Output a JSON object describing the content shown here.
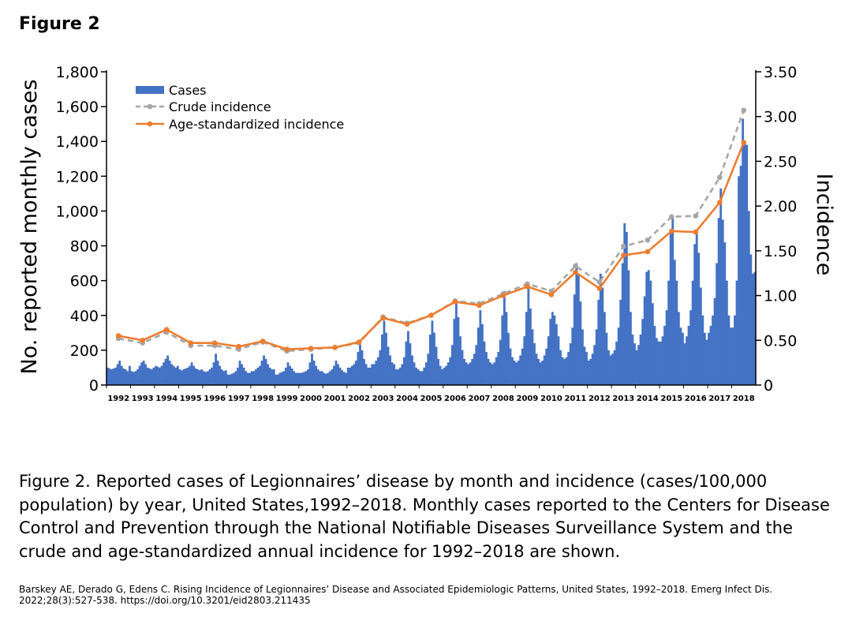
{
  "figure_label": "Figure 2",
  "caption": "Figure 2. Reported cases of Legionnaires’ disease by month and incidence (cases/100,000 population) by year, United States,1992–2018. Monthly cases reported to the Centers for Disease Control and Prevention through the National Notifiable Diseases Surveillance System and the crude and age-standardized annual incidence for 1992–2018 are shown.",
  "citation": "Barskey AE, Derado G, Edens C. Rising Incidence of Legionnaires’ Disease and Associated Epidemiologic Patterns, United States, 1992–2018. Emerg Infect Dis. 2022;28(3):527-538. https://doi.org/10.3201/eid2803.211435",
  "colors": {
    "cases": "#4472c4",
    "crude": "#a6a6a6",
    "age": "#ed7d31"
  },
  "chart_data": {
    "type": "bar+line",
    "title": "",
    "ylabel_left": "No. reported monthly cases",
    "ylabel_right": "Incidence",
    "ylim_left": [
      0,
      1800
    ],
    "ylim_right": [
      0,
      3.5
    ],
    "yticks_left": [
      0,
      200,
      400,
      600,
      800,
      1000,
      1200,
      1400,
      1600,
      1800
    ],
    "yticks_left_labels": [
      "0",
      "200",
      "400",
      "600",
      "800",
      "1,000",
      "1,200",
      "1,400",
      "1,600",
      "1,800"
    ],
    "yticks_right": [
      0,
      0.5,
      1.0,
      1.5,
      2.0,
      2.5,
      3.0,
      3.5
    ],
    "yticks_right_labels": [
      "0",
      "0.50",
      "1.00",
      "1.50",
      "2.00",
      "2.50",
      "3.00",
      "3.50"
    ],
    "legend_position": "top-left",
    "years": [
      "1992",
      "1993",
      "1994",
      "1995",
      "1996",
      "1997",
      "1998",
      "1999",
      "2000",
      "2001",
      "2002",
      "2003",
      "2004",
      "2005",
      "2006",
      "2007",
      "2008",
      "2009",
      "2010",
      "2011",
      "2012",
      "2013",
      "2014",
      "2015",
      "2016",
      "2017",
      "2018"
    ],
    "series": [
      {
        "name": "Cases",
        "kind": "bar",
        "description": "monthly cases, 12 values per year",
        "monthly_values": [
          [
            100,
            95,
            90,
            95,
            100,
            120,
            140,
            110,
            95,
            90,
            80,
            110
          ],
          [
            80,
            75,
            80,
            90,
            110,
            130,
            140,
            120,
            100,
            95,
            90,
            100
          ],
          [
            110,
            105,
            100,
            110,
            130,
            150,
            170,
            140,
            120,
            110,
            100,
            110
          ],
          [
            90,
            85,
            90,
            95,
            100,
            110,
            130,
            110,
            95,
            90,
            85,
            90
          ],
          [
            80,
            75,
            80,
            90,
            100,
            130,
            180,
            140,
            110,
            90,
            80,
            85
          ],
          [
            60,
            60,
            65,
            70,
            80,
            100,
            140,
            120,
            100,
            80,
            70,
            70
          ],
          [
            80,
            80,
            90,
            100,
            110,
            140,
            170,
            150,
            120,
            100,
            90,
            90
          ],
          [
            60,
            60,
            70,
            75,
            80,
            100,
            130,
            110,
            95,
            80,
            70,
            70
          ],
          [
            70,
            70,
            75,
            80,
            90,
            130,
            180,
            140,
            110,
            90,
            80,
            80
          ],
          [
            70,
            65,
            70,
            80,
            90,
            110,
            140,
            120,
            100,
            85,
            75,
            70
          ],
          [
            100,
            100,
            110,
            120,
            140,
            190,
            240,
            200,
            150,
            120,
            100,
            100
          ],
          [
            120,
            120,
            140,
            160,
            200,
            290,
            370,
            300,
            220,
            170,
            130,
            120
          ],
          [
            90,
            90,
            100,
            120,
            160,
            250,
            310,
            240,
            170,
            130,
            100,
            90
          ],
          [
            80,
            80,
            100,
            130,
            180,
            290,
            370,
            300,
            220,
            150,
            110,
            90
          ],
          [
            100,
            110,
            130,
            160,
            230,
            380,
            480,
            390,
            280,
            200,
            150,
            130
          ],
          [
            120,
            130,
            150,
            180,
            230,
            330,
            430,
            350,
            250,
            190,
            150,
            130
          ],
          [
            120,
            130,
            160,
            190,
            260,
            400,
            540,
            420,
            300,
            210,
            160,
            140
          ],
          [
            130,
            140,
            170,
            210,
            280,
            420,
            560,
            440,
            320,
            240,
            180,
            150
          ],
          [
            130,
            140,
            170,
            210,
            280,
            380,
            420,
            400,
            350,
            280,
            200,
            160
          ],
          [
            150,
            160,
            190,
            240,
            330,
            520,
            700,
            640,
            480,
            320,
            220,
            190
          ],
          [
            140,
            150,
            180,
            230,
            320,
            490,
            640,
            560,
            420,
            300,
            200,
            170
          ],
          [
            180,
            200,
            250,
            330,
            490,
            700,
            930,
            880,
            660,
            420,
            290,
            240
          ],
          [
            200,
            230,
            290,
            380,
            510,
            650,
            660,
            600,
            470,
            340,
            270,
            250
          ],
          [
            250,
            280,
            340,
            430,
            600,
            870,
            960,
            720,
            600,
            420,
            330,
            300
          ],
          [
            240,
            280,
            340,
            430,
            600,
            810,
            870,
            760,
            560,
            400,
            300,
            260
          ],
          [
            300,
            340,
            400,
            500,
            700,
            960,
            1130,
            950,
            820,
            600,
            400,
            330
          ],
          [
            330,
            400,
            600,
            1200,
            1260,
            1530,
            1400,
            1380,
            1000,
            750,
            640,
            650
          ]
        ]
      },
      {
        "name": "Crude incidence",
        "kind": "line-dashed",
        "values": [
          0.52,
          0.47,
          0.59,
          0.44,
          0.44,
          0.4,
          0.48,
          0.38,
          0.4,
          0.42,
          0.47,
          0.76,
          0.69,
          0.78,
          0.94,
          0.91,
          1.02,
          1.13,
          1.05,
          1.33,
          1.15,
          1.55,
          1.62,
          1.88,
          1.89,
          2.32,
          3.07
        ]
      },
      {
        "name": "Age-standardized incidence",
        "kind": "line",
        "values": [
          0.55,
          0.5,
          0.62,
          0.47,
          0.47,
          0.43,
          0.49,
          0.4,
          0.41,
          0.42,
          0.48,
          0.75,
          0.68,
          0.78,
          0.93,
          0.89,
          1.0,
          1.1,
          1.01,
          1.26,
          1.08,
          1.45,
          1.49,
          1.72,
          1.71,
          2.04,
          2.71
        ]
      }
    ]
  }
}
